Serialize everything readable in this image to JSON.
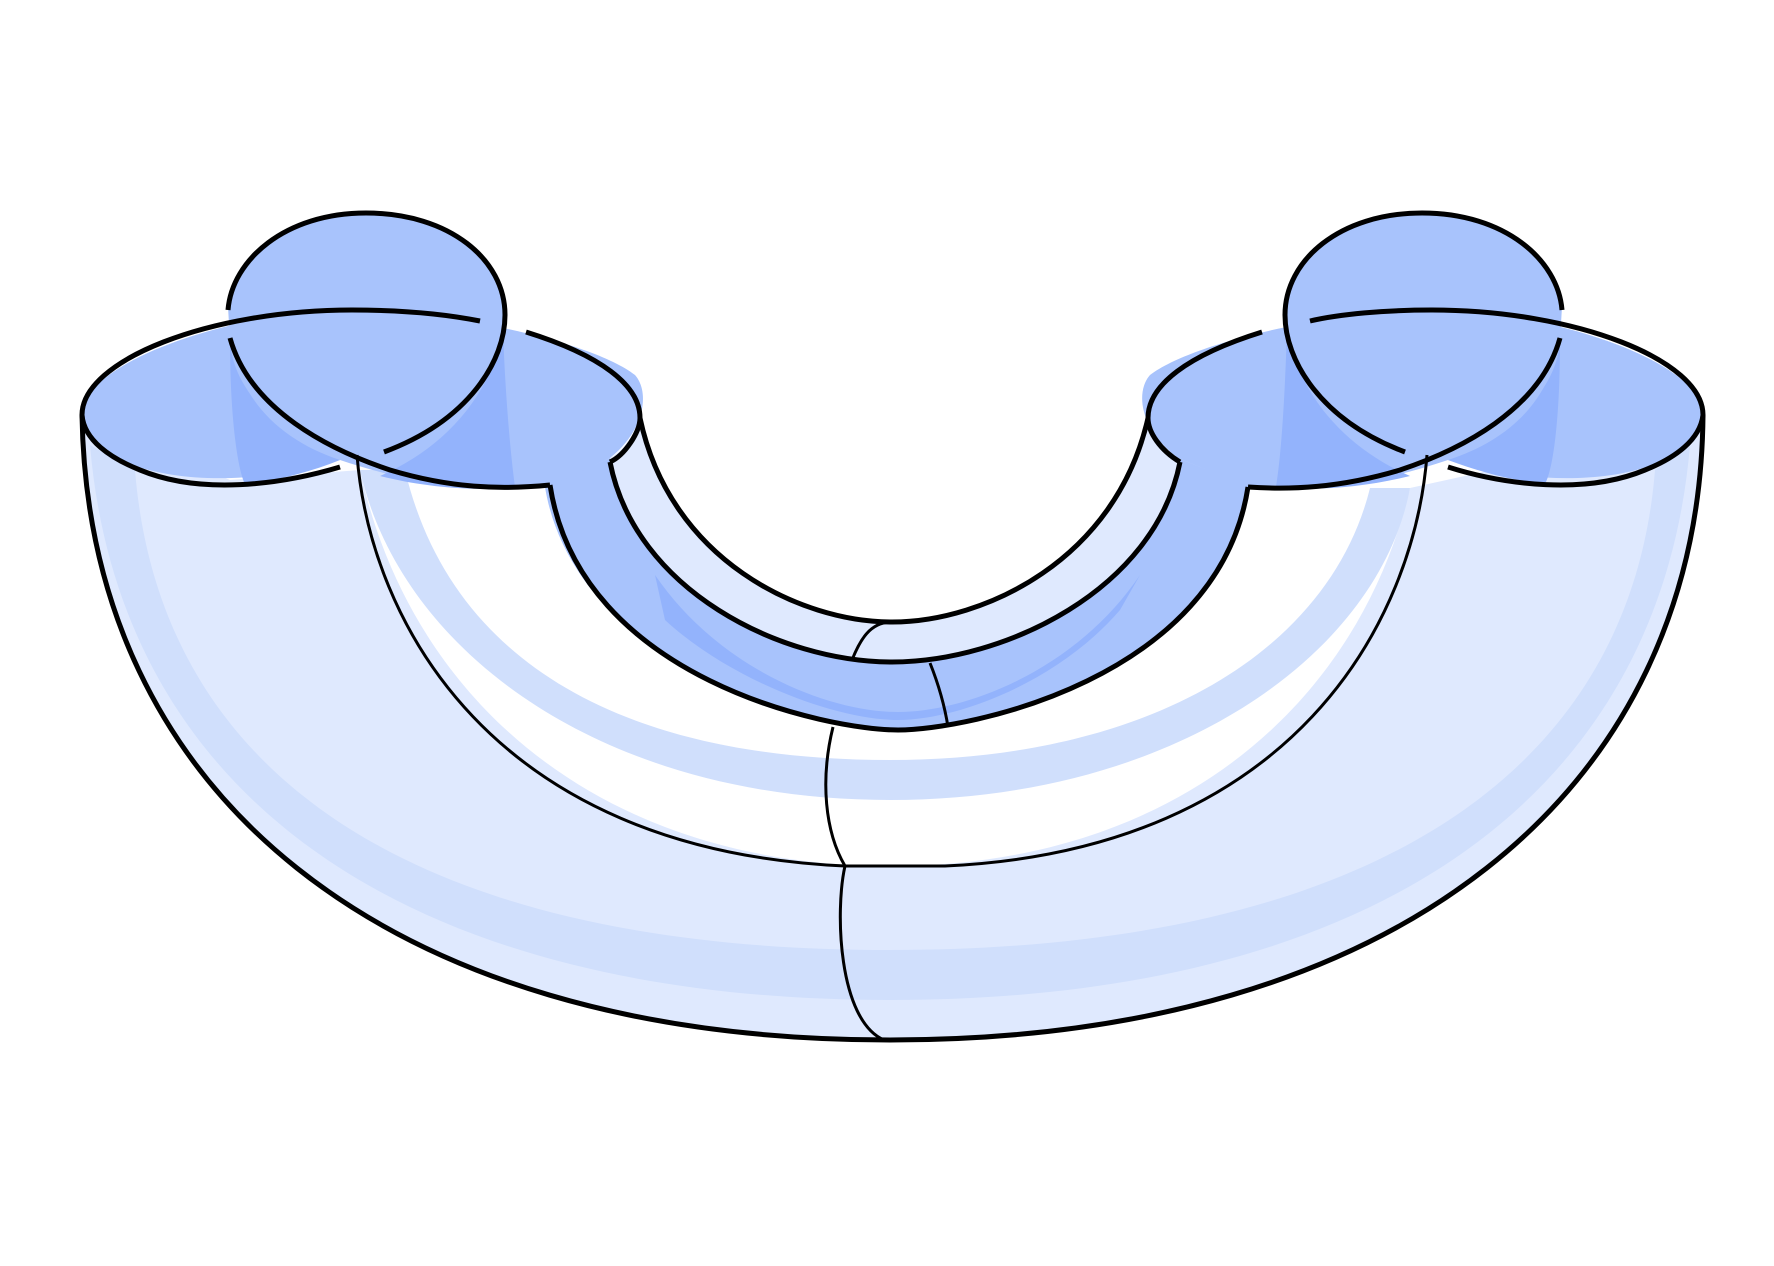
{
  "figure": {
    "subject": "surface-with-arcs",
    "colors": {
      "background": "#ffffff",
      "outer_face": "#dfe9fe",
      "outer_band": "#d0dffc",
      "top_face": "#a8c3fc",
      "inner_shadow": "#93b3fc",
      "ink": "#000000"
    }
  }
}
